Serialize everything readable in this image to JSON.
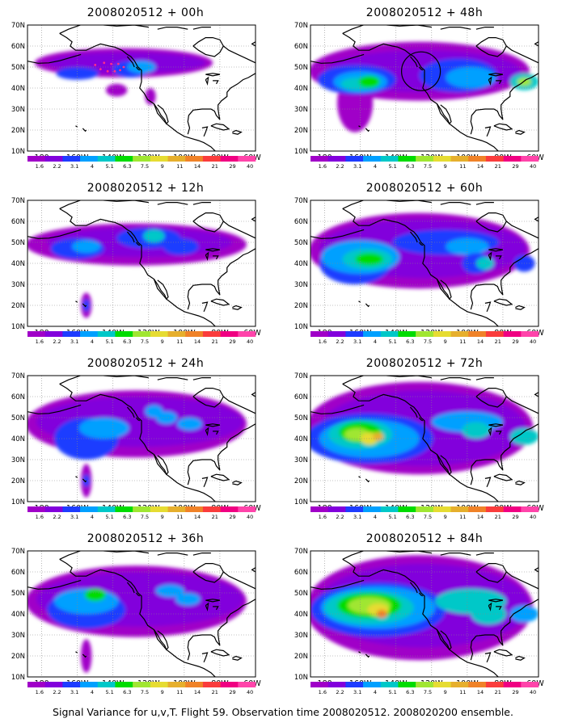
{
  "colorbar": {
    "labels": [
      "1.6",
      "2.2",
      "3.1",
      "4",
      "5.1",
      "6.3",
      "7.5",
      "9",
      "11",
      "14",
      "21",
      "29",
      "40"
    ],
    "colors": [
      "#a000c8",
      "#8200dc",
      "#1e3cff",
      "#00a0ff",
      "#00c8c8",
      "#00dc00",
      "#a0e632",
      "#e6dc32",
      "#e6af2d",
      "#f08228",
      "#fa3c3c",
      "#f00082",
      "#ff44aa"
    ]
  },
  "axes": {
    "lon_labels": [
      "180",
      "160W",
      "140W",
      "120W",
      "100W",
      "80W",
      "60W"
    ],
    "lat_labels": [
      "10N",
      "20N",
      "30N",
      "40N",
      "50N",
      "60N",
      "70N"
    ]
  },
  "panels": [
    {
      "title": "2008020512 + 00h"
    },
    {
      "title": "2008020512 + 48h"
    },
    {
      "title": "2008020512 + 12h"
    },
    {
      "title": "2008020512 + 60h"
    },
    {
      "title": "2008020512 + 24h"
    },
    {
      "title": "2008020512 + 72h"
    },
    {
      "title": "2008020512 + 36h"
    },
    {
      "title": "2008020512 + 84h"
    }
  ],
  "footer": "Signal Variance for u,v,T. Flight 59. Observation time 2008020512. 2008020200 ensemble."
}
